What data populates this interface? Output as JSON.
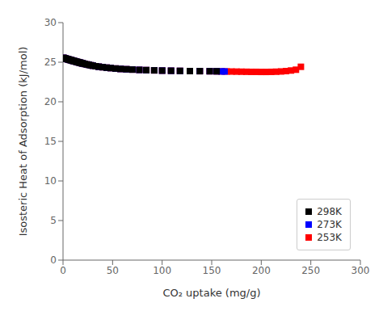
{
  "chart_data": {
    "type": "scatter",
    "xlabel": "CO₂ uptake (mg/g)",
    "ylabel": "Isosteric Heat of Adsorption (kJ/mol)",
    "xlim": [
      0,
      300
    ],
    "ylim": [
      0,
      30
    ],
    "xticks": [
      0,
      50,
      100,
      150,
      200,
      250,
      300
    ],
    "yticks": [
      0,
      5,
      10,
      15,
      20,
      25,
      30
    ],
    "marker": "square",
    "grid": false,
    "legend": "lower right",
    "series": [
      {
        "name": "298K",
        "color": "#000000",
        "x": [
          0.3,
          1,
          2,
          3,
          4,
          5,
          6,
          7,
          8,
          9,
          10,
          11,
          12,
          13,
          14,
          15,
          16,
          17,
          18,
          19,
          20,
          22,
          24,
          26,
          28,
          30,
          33,
          36,
          40,
          44,
          48,
          53,
          58,
          64,
          70,
          77,
          84,
          92,
          100,
          109,
          118,
          128,
          138,
          148,
          155
        ],
        "values": [
          25.55,
          25.52,
          25.48,
          25.44,
          25.4,
          25.37,
          25.33,
          25.29,
          25.26,
          25.22,
          25.18,
          25.15,
          25.11,
          25.08,
          25.04,
          25.01,
          24.97,
          24.94,
          24.91,
          24.87,
          24.84,
          24.78,
          24.72,
          24.67,
          24.61,
          24.56,
          24.49,
          24.43,
          24.37,
          24.31,
          24.26,
          24.2,
          24.15,
          24.11,
          24.07,
          24.03,
          24.0,
          23.97,
          23.94,
          23.92,
          23.9,
          23.88,
          23.87,
          23.86,
          23.85
        ]
      },
      {
        "name": "273K",
        "color": "#0000ff",
        "x": [
          0.3,
          1,
          2,
          3,
          4,
          5,
          6,
          7,
          8,
          9,
          10,
          11,
          12,
          13,
          14,
          15,
          16,
          17,
          18,
          19,
          20,
          22,
          24,
          26,
          28,
          30,
          33,
          36,
          40,
          44,
          48,
          53,
          58,
          64,
          70,
          77,
          84,
          92,
          100,
          109,
          118,
          128,
          138,
          148,
          155,
          160,
          163
        ],
        "values": [
          25.55,
          25.52,
          25.48,
          25.44,
          25.4,
          25.37,
          25.33,
          25.29,
          25.26,
          25.22,
          25.18,
          25.15,
          25.11,
          25.08,
          25.04,
          25.01,
          24.97,
          24.94,
          24.91,
          24.87,
          24.84,
          24.78,
          24.72,
          24.67,
          24.61,
          24.56,
          24.49,
          24.43,
          24.37,
          24.31,
          24.26,
          24.2,
          24.15,
          24.11,
          24.07,
          24.03,
          24.0,
          23.97,
          23.94,
          23.92,
          23.9,
          23.88,
          23.87,
          23.86,
          23.85,
          23.84,
          23.83
        ]
      },
      {
        "name": "253K",
        "color": "#ff0000",
        "x": [
          0.3,
          1,
          2,
          3,
          4,
          5,
          6,
          7,
          8,
          9,
          10,
          11,
          12,
          13,
          14,
          15,
          16,
          17,
          18,
          19,
          20,
          22,
          24,
          26,
          28,
          30,
          33,
          36,
          40,
          44,
          48,
          53,
          58,
          64,
          70,
          77,
          84,
          92,
          100,
          109,
          118,
          128,
          138,
          148,
          155,
          160,
          165,
          170,
          175,
          180,
          185,
          190,
          195,
          200,
          205,
          210,
          215,
          220,
          225,
          230,
          235,
          240
        ],
        "values": [
          25.55,
          25.52,
          25.48,
          25.44,
          25.4,
          25.37,
          25.33,
          25.29,
          25.26,
          25.22,
          25.18,
          25.15,
          25.11,
          25.08,
          25.04,
          25.01,
          24.97,
          24.94,
          24.91,
          24.87,
          24.84,
          24.78,
          24.72,
          24.67,
          24.61,
          24.56,
          24.49,
          24.43,
          24.37,
          24.31,
          24.26,
          24.2,
          24.15,
          24.11,
          24.07,
          24.03,
          24.0,
          23.97,
          23.94,
          23.92,
          23.9,
          23.88,
          23.87,
          23.86,
          23.85,
          23.84,
          23.83,
          23.82,
          23.81,
          23.8,
          23.79,
          23.78,
          23.78,
          23.77,
          23.77,
          23.78,
          23.8,
          23.83,
          23.88,
          23.95,
          24.05,
          24.42
        ]
      }
    ]
  }
}
